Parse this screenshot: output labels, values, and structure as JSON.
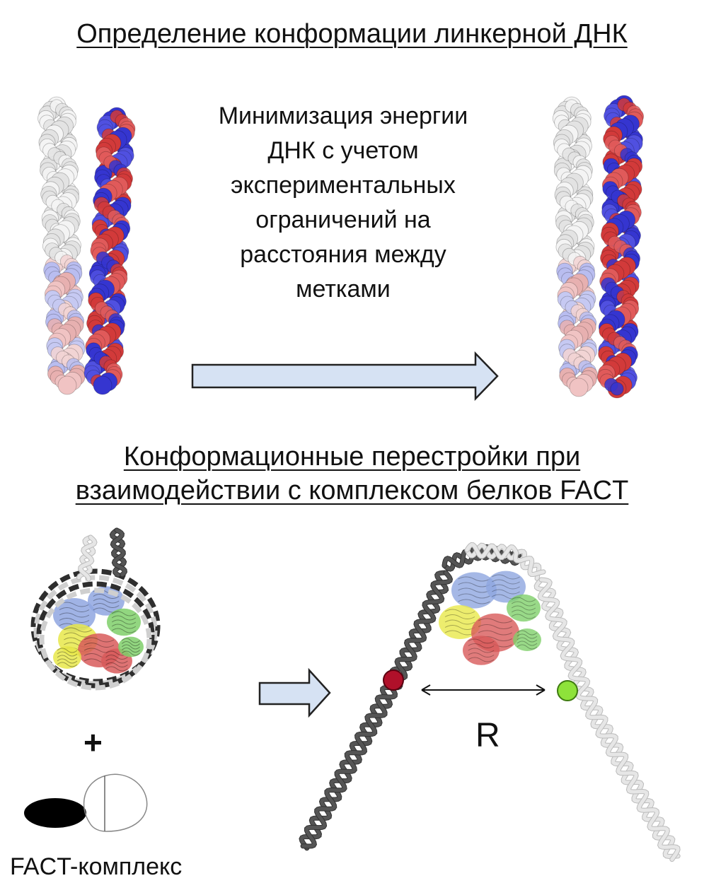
{
  "top_section": {
    "heading": "Определение конформации линкерной ДНК",
    "caption_lines": [
      "Минимизация энергии",
      "ДНК с учетом",
      "экспериментальных",
      "ограничений на",
      "расстояния между",
      "метками"
    ]
  },
  "bottom_section": {
    "heading_lines": [
      "Конформационные перестройки при",
      "взаимодействии с комплексом белков FACT"
    ],
    "plus_sign": "+",
    "distance_label": "R",
    "fact_label": "FACT-комплекс"
  },
  "colors": {
    "dna_red": "#d23a3a",
    "dna_blue": "#3535d0",
    "dna_white": "#eeeeee",
    "arrow_fill": "#d6e2f3",
    "marker_red": "#b0102a",
    "marker_green": "#8ee23a",
    "histone_yellow": "#e8e84a",
    "histone_green": "#7fcf6a",
    "histone_blue": "#8fa6e0",
    "histone_red": "#d85a5a"
  },
  "icons": [
    "block-arrow-right",
    "double-headed-arrow",
    "black-ellipse",
    "open-ellipse"
  ]
}
